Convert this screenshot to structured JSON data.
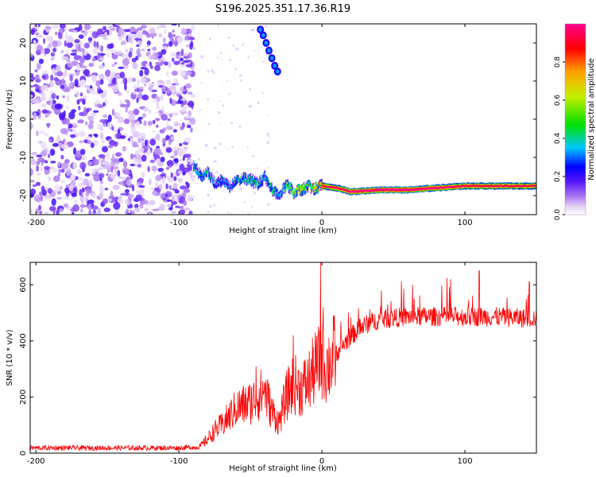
{
  "figure": {
    "title": "S196.2025.351.17.36.R19"
  },
  "chart_data": [
    {
      "type": "heatmap",
      "title": "S196.2025.351.17.36.R19",
      "xlabel": "Height of straight line (km)",
      "ylabel": "Frequency (Hz)",
      "xlim": [
        -204,
        150
      ],
      "ylim": [
        -25,
        25
      ],
      "xticks": [
        -200,
        -100,
        0,
        100
      ],
      "xtick_labels": [
        "-200",
        "-100",
        "0",
        "100"
      ],
      "yticks": [
        -20,
        -10,
        0,
        10,
        20
      ],
      "ytick_labels": [
        "-20",
        "-10",
        "0",
        "10",
        "20"
      ],
      "colorbar": {
        "label": "Normalized spectral amplitude",
        "range": [
          0,
          1
        ],
        "ticks": [
          0.0,
          0.2,
          0.4,
          0.6,
          0.8
        ],
        "tick_labels": [
          "0.0",
          "0.2",
          "0.4",
          "0.6",
          "0.8"
        ],
        "colormap": [
          "#ffffff",
          "#c8a8f0",
          "#7b2ff7",
          "#0000ff",
          "#00d8ff",
          "#00e000",
          "#c8f000",
          "#ffa000",
          "#ff0000",
          "#ff00a0"
        ]
      },
      "features": {
        "noise_region_x": [
          -204,
          -90
        ],
        "ridge": {
          "x": [
            -90,
            -85,
            -80,
            -75,
            -70,
            -65,
            -60,
            -55,
            -50,
            -45,
            -40,
            -35,
            -30,
            -25,
            -20,
            -15,
            -10,
            -5,
            0,
            10,
            20,
            40,
            60,
            80,
            100,
            120,
            150
          ],
          "frequency": [
            -12,
            -15,
            -14,
            -17,
            -16,
            -18,
            -16,
            -15.5,
            -16,
            -17,
            -15,
            -18.5,
            -20,
            -17,
            -19,
            -18.5,
            -17.5,
            -18,
            -17.5,
            -18,
            -19,
            -18.5,
            -18.5,
            -18,
            -17.5,
            -17.5,
            -17.5
          ],
          "amplitude": [
            0.45,
            0.35,
            0.4,
            0.3,
            0.35,
            0.3,
            0.4,
            0.35,
            0.5,
            0.4,
            0.35,
            0.5,
            0.3,
            0.55,
            0.6,
            0.7,
            0.5,
            0.7,
            0.85,
            0.9,
            0.95,
            1.0,
            1.0,
            0.95,
            0.9,
            0.9,
            0.85
          ]
        },
        "upper_branch": {
          "x": [
            -43,
            -41,
            -39,
            -37,
            -35,
            -33,
            -31
          ],
          "frequency": [
            23.5,
            22,
            20,
            18,
            16,
            14,
            12.5
          ]
        }
      }
    },
    {
      "type": "line",
      "xlabel": "Height of straight line (km)",
      "ylabel": "SNR (10 * v/v)",
      "xlim": [
        -204,
        150
      ],
      "ylim": [
        0,
        680
      ],
      "xticks": [
        -200,
        -100,
        0,
        100
      ],
      "xtick_labels": [
        "-200",
        "-100",
        "0",
        "100"
      ],
      "yticks": [
        0,
        200,
        400,
        600
      ],
      "ytick_labels": [
        "0",
        "200",
        "400",
        "600"
      ],
      "series": [
        {
          "name": "SNR",
          "color": "#ff0000",
          "x": [
            -204,
            -180,
            -160,
            -140,
            -120,
            -100,
            -90,
            -85,
            -80,
            -75,
            -70,
            -65,
            -60,
            -55,
            -50,
            -45,
            -40,
            -35,
            -30,
            -25,
            -20,
            -15,
            -10,
            -5,
            -2,
            0,
            2,
            5,
            10,
            15,
            20,
            25,
            30,
            40,
            50,
            60,
            80,
            100,
            120,
            140,
            150
          ],
          "y": [
            15,
            15,
            15,
            15,
            15,
            15,
            18,
            25,
            50,
            80,
            100,
            130,
            160,
            170,
            180,
            200,
            220,
            150,
            110,
            200,
            250,
            230,
            250,
            300,
            320,
            340,
            300,
            320,
            360,
            390,
            420,
            440,
            460,
            480,
            485,
            490,
            490,
            490,
            490,
            485,
            485
          ],
          "spikes": [
            {
              "x": -46,
              "y": 310
            },
            {
              "x": -40,
              "y": 250
            },
            {
              "x": -20,
              "y": 420
            },
            {
              "x": -1,
              "y": 680
            },
            {
              "x": 1,
              "y": 520
            },
            {
              "x": 110,
              "y": 650
            },
            {
              "x": 90,
              "y": 620
            },
            {
              "x": 145,
              "y": 610
            }
          ]
        }
      ]
    }
  ]
}
